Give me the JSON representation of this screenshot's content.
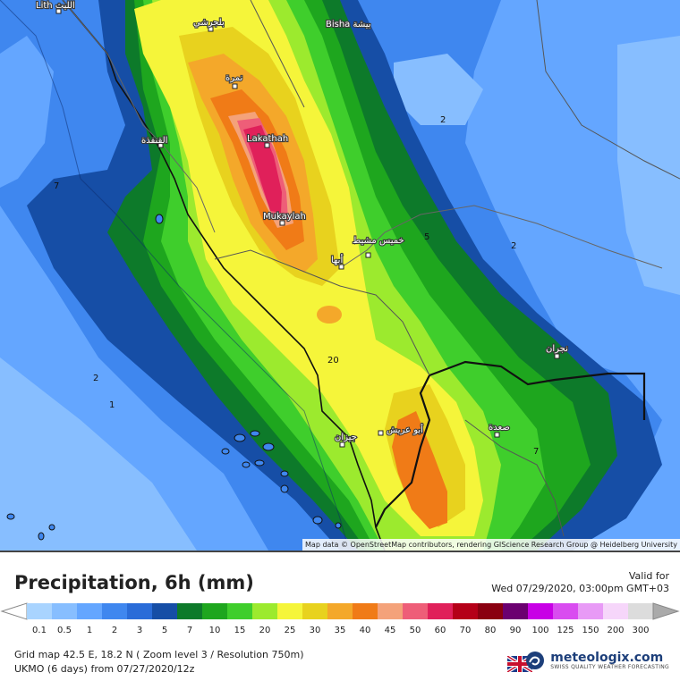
{
  "map": {
    "cities": [
      {
        "name": "Lith الليث"
      },
      {
        "name": "بلجرشي"
      },
      {
        "name": "Bisha بيشة"
      },
      {
        "name": "نمرة"
      },
      {
        "name": "القنفذة"
      },
      {
        "name": "Lakathah"
      },
      {
        "name": "Mukaylah"
      },
      {
        "name": "أبها"
      },
      {
        "name": "خميس مشيط"
      },
      {
        "name": "نجران"
      },
      {
        "name": "صعدة"
      },
      {
        "name": "أبو عريش"
      },
      {
        "name": "جيزان"
      }
    ],
    "contour_labels": [
      "2",
      "7",
      "5",
      "2",
      "2",
      "1",
      "20",
      "7"
    ],
    "attribution": "Map data © OpenStreetMap contributors, rendering GIScience Research Group @ Heidelberg University"
  },
  "legend": {
    "title": "Precipitation, 6h (mm)",
    "valid_label": "Valid for",
    "valid_value": "Wed 07/29/2020, 03:00pm GMT+03",
    "ticks": [
      "0.1",
      "0.5",
      "1",
      "2",
      "3",
      "5",
      "7",
      "10",
      "15",
      "20",
      "25",
      "30",
      "35",
      "40",
      "45",
      "50",
      "60",
      "70",
      "80",
      "90",
      "100",
      "125",
      "150",
      "200",
      "300"
    ],
    "colors": [
      "#a9d4ff",
      "#87beff",
      "#64a6ff",
      "#3f87ef",
      "#2a6cd8",
      "#164ea6",
      "#0d7a2a",
      "#1ea61e",
      "#3fce2c",
      "#9cea2e",
      "#f5f53a",
      "#e8d21e",
      "#f4a82a",
      "#f07b17",
      "#f4a27a",
      "#ee5e78",
      "#e0205a",
      "#b50018",
      "#8a0010",
      "#6b0070",
      "#c800e6",
      "#d94cf0",
      "#e89af6",
      "#f6d6fa",
      "#dcdcdc"
    ],
    "meta_line1": "Grid map 42.5 E, 18.2 N ( Zoom level 3 / Resolution 750m)",
    "meta_line2": "UKMO (6 days) from 07/27/2020/12z",
    "logo_name": "meteologix.com",
    "logo_tagline": "SWISS QUALITY WEATHER FORECASTING"
  }
}
